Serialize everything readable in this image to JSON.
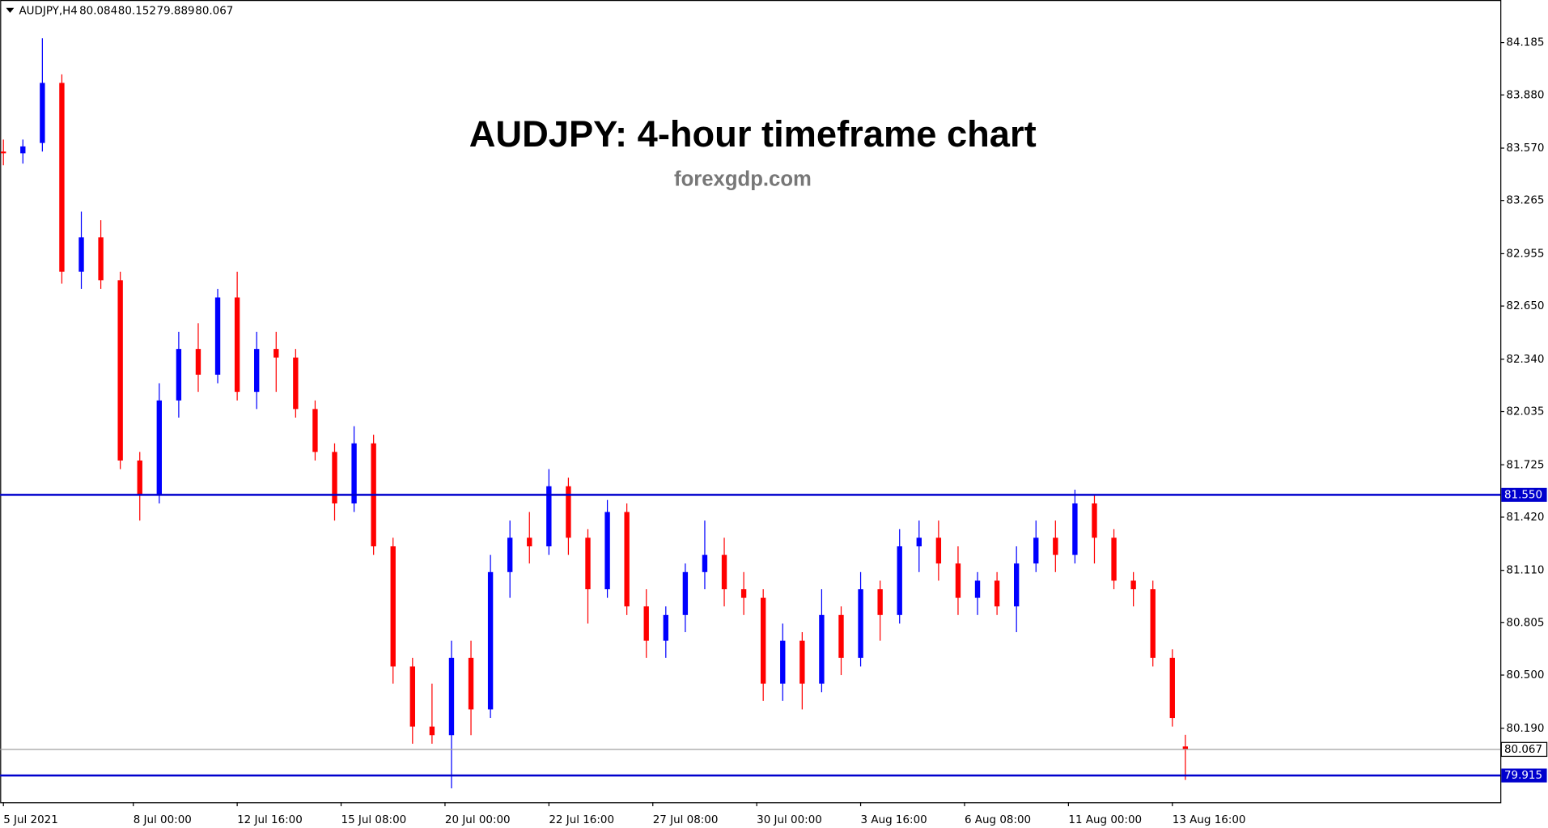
{
  "chart_data": {
    "type": "candlestick",
    "symbol": "AUDJPY,H4",
    "header_ohlc": [
      80.084,
      80.152,
      79.889,
      80.067
    ],
    "title": "AUDJPY: 4-hour timeframe chart",
    "subtitle": "forexgdp.com",
    "up_color": "#0000ff",
    "down_color": "#ff0000",
    "x": [
      0,
      3,
      6,
      9,
      12,
      15,
      18,
      21,
      24,
      27,
      30,
      33,
      36,
      39,
      42,
      45,
      48,
      51,
      54,
      57,
      60,
      63,
      66,
      69,
      72,
      75,
      78,
      81,
      84,
      87,
      90,
      93,
      96,
      99,
      102,
      105,
      108,
      111,
      114,
      117,
      120,
      123,
      126,
      129,
      132,
      135,
      138,
      141,
      144,
      147,
      150,
      153,
      156,
      159,
      162,
      165,
      168,
      171,
      174,
      177,
      180,
      182
    ],
    "open": [
      83.55,
      83.54,
      83.6,
      83.95,
      82.85,
      83.05,
      82.8,
      81.75,
      81.55,
      82.1,
      82.4,
      82.25,
      82.7,
      82.15,
      82.4,
      82.35,
      82.05,
      81.8,
      81.5,
      81.85,
      81.25,
      80.55,
      80.2,
      80.15,
      80.6,
      80.3,
      81.1,
      81.3,
      81.25,
      81.6,
      81.3,
      81.0,
      81.45,
      80.9,
      80.7,
      80.85,
      81.1,
      81.2,
      81.0,
      80.95,
      80.45,
      80.7,
      80.45,
      80.85,
      80.6,
      81.0,
      80.85,
      81.25,
      81.3,
      81.15,
      80.95,
      81.05,
      80.9,
      81.15,
      81.3,
      81.2,
      81.5,
      81.3,
      81.05,
      81.0,
      80.6,
      80.084
    ],
    "high": [
      83.62,
      83.62,
      84.21,
      84.0,
      83.2,
      83.15,
      82.85,
      81.8,
      82.2,
      82.5,
      82.55,
      82.75,
      82.85,
      82.5,
      82.5,
      82.4,
      82.1,
      81.85,
      81.95,
      81.9,
      81.3,
      80.6,
      80.45,
      80.7,
      80.7,
      81.2,
      81.4,
      81.45,
      81.7,
      81.65,
      81.35,
      81.52,
      81.5,
      81.0,
      80.9,
      81.15,
      81.4,
      81.3,
      81.1,
      81.0,
      80.8,
      80.75,
      81.0,
      80.9,
      81.1,
      81.05,
      81.35,
      81.4,
      81.4,
      81.25,
      81.1,
      81.1,
      81.25,
      81.4,
      81.4,
      81.58,
      81.55,
      81.35,
      81.1,
      81.05,
      80.65,
      80.152
    ],
    "low": [
      83.47,
      83.48,
      83.55,
      82.78,
      82.75,
      82.75,
      81.7,
      81.4,
      81.5,
      82.0,
      82.15,
      82.2,
      82.1,
      82.05,
      82.15,
      82.0,
      81.75,
      81.4,
      81.45,
      81.2,
      80.45,
      80.1,
      80.1,
      79.84,
      80.15,
      80.25,
      80.95,
      81.15,
      81.2,
      81.2,
      80.8,
      80.95,
      80.85,
      80.6,
      80.6,
      80.75,
      81.0,
      80.9,
      80.85,
      80.35,
      80.35,
      80.3,
      80.4,
      80.5,
      80.55,
      80.7,
      80.8,
      81.1,
      81.05,
      80.85,
      80.85,
      80.85,
      80.75,
      81.1,
      81.1,
      81.15,
      81.15,
      81.0,
      80.9,
      80.55,
      80.2,
      79.889
    ],
    "close": [
      83.54,
      83.58,
      83.95,
      82.85,
      83.05,
      82.8,
      81.75,
      81.55,
      82.1,
      82.4,
      82.25,
      82.7,
      82.15,
      82.4,
      82.35,
      82.05,
      81.8,
      81.5,
      81.85,
      81.25,
      80.55,
      80.2,
      80.15,
      80.6,
      80.3,
      81.1,
      81.3,
      81.25,
      81.6,
      81.3,
      81.0,
      81.45,
      80.9,
      80.7,
      80.85,
      81.1,
      81.2,
      81.0,
      80.95,
      80.45,
      80.7,
      80.45,
      80.85,
      80.6,
      81.0,
      80.85,
      81.25,
      81.3,
      81.15,
      80.95,
      81.05,
      80.9,
      81.15,
      81.3,
      81.2,
      81.5,
      81.3,
      81.05,
      81.0,
      80.6,
      80.25,
      80.067
    ],
    "xlim": [
      -0.5,
      230.5
    ],
    "xticks": [
      {
        "value": 0,
        "label": "5 Jul 2021"
      },
      {
        "value": 20,
        "label": "8 Jul 00:00"
      },
      {
        "value": 36,
        "label": "12 Jul 16:00"
      },
      {
        "value": 52,
        "label": "15 Jul 08:00"
      },
      {
        "value": 68,
        "label": "20 Jul 00:00"
      },
      {
        "value": 84,
        "label": "22 Jul 16:00"
      },
      {
        "value": 100,
        "label": "27 Jul 08:00"
      },
      {
        "value": 116,
        "label": "30 Jul 00:00"
      },
      {
        "value": 132,
        "label": "3 Aug 16:00"
      },
      {
        "value": 148,
        "label": "6 Aug 08:00"
      },
      {
        "value": 164,
        "label": "11 Aug 00:00"
      },
      {
        "value": 180,
        "label": "13 Aug 16:00"
      }
    ],
    "ylim": [
      79.759,
      84.433
    ],
    "yticks": [
      84.185,
      {
        "value": 83.88,
        "label": "83.880"
      },
      {
        "value": 83.57,
        "label": "83.570"
      },
      83.265,
      82.955,
      {
        "value": 82.65,
        "label": "82.650"
      },
      {
        "value": 82.34,
        "label": "82.340"
      },
      82.035,
      81.725,
      {
        "value": 81.42,
        "label": "81.420"
      },
      {
        "value": 81.11,
        "label": "81.110"
      },
      80.805,
      {
        "value": 80.5,
        "label": "80.500"
      },
      {
        "value": 80.19,
        "label": "80.190"
      }
    ],
    "levels": [
      {
        "value": 81.55,
        "label": "81.550",
        "color": "#0000cd"
      },
      {
        "value": 79.915,
        "color": "#0000cd"
      }
    ],
    "current_price": 80.067
  }
}
